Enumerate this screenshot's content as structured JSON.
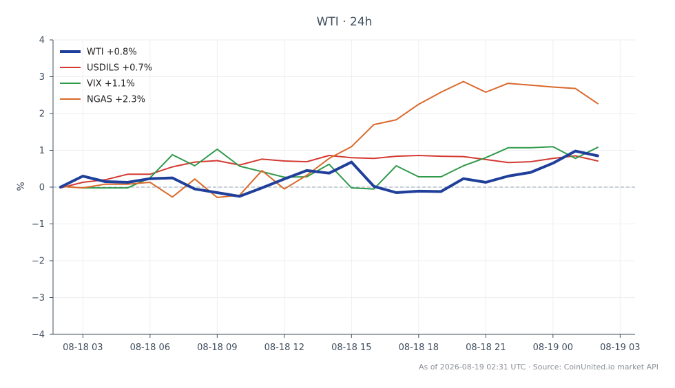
{
  "chart_data": {
    "type": "line",
    "title": "WTI · 24h",
    "xlabel": "",
    "ylabel": "%",
    "ylim": [
      -4,
      4
    ],
    "xlim": [
      "2026-08-18 01:40",
      "2026-08-19 03:40"
    ],
    "yticks": [
      -4,
      -3,
      -2,
      -1,
      0,
      1,
      2,
      3,
      4
    ],
    "ytick_labels": [
      "−4",
      "−3",
      "−2",
      "−1",
      "0",
      "1",
      "2",
      "3",
      "4"
    ],
    "xticks": [
      "2026-08-18 03:00",
      "2026-08-18 06:00",
      "2026-08-18 09:00",
      "2026-08-18 12:00",
      "2026-08-18 15:00",
      "2026-08-18 18:00",
      "2026-08-18 21:00",
      "2026-08-19 00:00",
      "2026-08-19 03:00"
    ],
    "xtick_labels": [
      "08-18 03",
      "08-18 06",
      "08-18 09",
      "08-18 12",
      "08-18 15",
      "08-18 18",
      "08-18 21",
      "08-19 00",
      "08-19 03"
    ],
    "grid": true,
    "legend_position": "top-left",
    "x": [
      "2026-08-18 02:00",
      "2026-08-18 03:00",
      "2026-08-18 04:00",
      "2026-08-18 05:00",
      "2026-08-18 06:00",
      "2026-08-18 07:00",
      "2026-08-18 08:00",
      "2026-08-18 09:00",
      "2026-08-18 10:00",
      "2026-08-18 11:00",
      "2026-08-18 12:00",
      "2026-08-18 13:00",
      "2026-08-18 14:00",
      "2026-08-18 15:00",
      "2026-08-18 16:00",
      "2026-08-18 17:00",
      "2026-08-18 18:00",
      "2026-08-18 19:00",
      "2026-08-18 20:00",
      "2026-08-18 21:00",
      "2026-08-18 22:00",
      "2026-08-18 23:00",
      "2026-08-19 00:00",
      "2026-08-19 01:00",
      "2026-08-19 02:00"
    ],
    "series": [
      {
        "name": "WTI +0.8%",
        "color": "#1f3f9a",
        "width": 4,
        "values": [
          0.0,
          0.3,
          0.15,
          0.13,
          0.23,
          0.25,
          -0.05,
          -0.15,
          -0.25,
          -0.02,
          0.22,
          0.45,
          0.38,
          0.68,
          0.02,
          -0.15,
          -0.11,
          -0.12,
          0.23,
          0.13,
          0.3,
          0.4,
          0.65,
          0.98,
          0.85
        ]
      },
      {
        "name": "USDILS +0.7%",
        "color": "#d33a32",
        "width": 2,
        "values": [
          -0.02,
          0.13,
          0.2,
          0.35,
          0.35,
          0.55,
          0.68,
          0.72,
          0.6,
          0.76,
          0.71,
          0.69,
          0.86,
          0.8,
          0.78,
          0.84,
          0.86,
          0.84,
          0.83,
          0.75,
          0.67,
          0.69,
          0.78,
          0.85,
          0.71
        ]
      },
      {
        "name": "VIX +1.1%",
        "color": "#2f9a4a",
        "width": 2,
        "values": [
          0.02,
          -0.02,
          -0.02,
          -0.02,
          0.25,
          0.88,
          0.58,
          1.03,
          0.57,
          0.42,
          0.27,
          0.28,
          0.62,
          -0.02,
          -0.05,
          0.58,
          0.28,
          0.28,
          0.58,
          0.8,
          1.07,
          1.07,
          1.1,
          0.78,
          1.08
        ]
      },
      {
        "name": "NGAS +2.3%",
        "color": "#d9682a",
        "width": 2,
        "values": [
          0.02,
          -0.02,
          0.08,
          0.08,
          0.13,
          -0.27,
          0.22,
          -0.28,
          -0.22,
          0.45,
          -0.05,
          0.32,
          0.78,
          1.1,
          1.7,
          1.83,
          2.25,
          2.58,
          2.87,
          2.58,
          2.82,
          2.77,
          2.72,
          2.68,
          2.27
        ]
      }
    ]
  },
  "footer": {
    "note": "As of 2026-08-19 02:31 UTC · Source: CoinUnited.io market API"
  }
}
